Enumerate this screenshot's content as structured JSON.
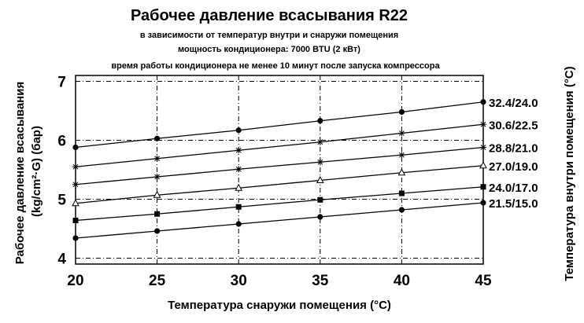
{
  "chart_data": {
    "type": "line",
    "title": "Рабочее давление всасывания R22",
    "subtitles": [
      "в зависимости от температур внутри и снаружи помещения",
      "мощность кондиционера: 7000 BTU (2 кВт)",
      "время работы кондиционера не менее 10 минут  после запуска компрессора"
    ],
    "xlabel": "Температура снаружи помещения (°С)",
    "ylabel_lines": [
      "Рабочее давление всасывания",
      "(kg/cm²·G) (бар)"
    ],
    "right_label": "Температура внутри помещения (°С)",
    "xlim": [
      20,
      45
    ],
    "ylim": [
      3.9,
      7.1
    ],
    "x_ticks": [
      "20",
      "25",
      "30",
      "35",
      "40",
      "45"
    ],
    "y_ticks": [
      "4",
      "5",
      "6",
      "7"
    ],
    "grid": true,
    "x": [
      20,
      25,
      30,
      35,
      40,
      45
    ],
    "series": [
      {
        "name": "32.4/24.0",
        "marker": "circle",
        "values": [
          5.88,
          6.03,
          6.17,
          6.33,
          6.48,
          6.65
        ]
      },
      {
        "name": "30.6/22.5",
        "marker": "star",
        "values": [
          5.55,
          5.69,
          5.83,
          5.97,
          6.12,
          6.27
        ]
      },
      {
        "name": "28.8/21.0",
        "marker": "star",
        "values": [
          5.25,
          5.38,
          5.51,
          5.63,
          5.75,
          5.88
        ]
      },
      {
        "name": "27.0/19.0",
        "marker": "triangle",
        "values": [
          4.93,
          5.07,
          5.19,
          5.32,
          5.45,
          5.57
        ]
      },
      {
        "name": "24.0/17.0",
        "marker": "square",
        "values": [
          4.64,
          4.75,
          4.87,
          4.99,
          5.1,
          5.21
        ]
      },
      {
        "name": "21.5/15.0",
        "marker": "circle",
        "values": [
          4.34,
          4.46,
          4.58,
          4.7,
          4.82,
          4.94
        ]
      }
    ]
  }
}
